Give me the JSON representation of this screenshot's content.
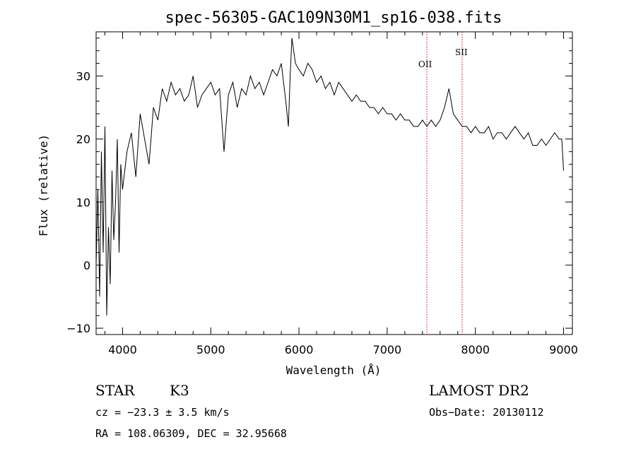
{
  "chart_data": {
    "type": "line",
    "title": "spec-56305-GAC109N30M1_sp16-038.fits",
    "xlabel": "Wavelength (Å)",
    "ylabel": "Flux (relative)",
    "xlim": [
      3700,
      9100
    ],
    "ylim": [
      -11,
      37
    ],
    "x_ticks": [
      4000,
      5000,
      6000,
      7000,
      8000,
      9000
    ],
    "x_tick_labels": [
      "4000",
      "5000",
      "6000",
      "7000",
      "8000",
      "9000"
    ],
    "y_ticks": [
      -10,
      0,
      10,
      20,
      30
    ],
    "y_tick_labels": [
      "−10",
      "0",
      "10",
      "20",
      "30"
    ],
    "grid": false,
    "series": [
      {
        "x": [
          3700,
          3720,
          3740,
          3760,
          3780,
          3800,
          3820,
          3840,
          3860,
          3880,
          3900,
          3920,
          3940,
          3960,
          3980,
          4000,
          4050,
          4100,
          4150,
          4200,
          4250,
          4300,
          4350,
          4400,
          4450,
          4500,
          4550,
          4600,
          4650,
          4700,
          4750,
          4800,
          4850,
          4900,
          4950,
          5000,
          5050,
          5100,
          5150,
          5200,
          5250,
          5300,
          5350,
          5400,
          5450,
          5500,
          5550,
          5600,
          5650,
          5700,
          5750,
          5800,
          5850,
          5880,
          5900,
          5920,
          5940,
          5960,
          6000,
          6050,
          6100,
          6150,
          6200,
          6250,
          6300,
          6350,
          6400,
          6450,
          6500,
          6550,
          6600,
          6650,
          6700,
          6750,
          6800,
          6850,
          6900,
          6950,
          7000,
          7050,
          7100,
          7150,
          7200,
          7250,
          7300,
          7350,
          7400,
          7450,
          7500,
          7550,
          7600,
          7650,
          7700,
          7750,
          7800,
          7850,
          7900,
          7950,
          8000,
          8050,
          8100,
          8150,
          8200,
          8250,
          8300,
          8350,
          8400,
          8450,
          8500,
          8550,
          8600,
          8650,
          8700,
          8750,
          8800,
          8850,
          8900,
          8950,
          8980,
          9000
        ],
        "y": [
          0,
          12,
          -5,
          18,
          2,
          22,
          -8,
          6,
          -3,
          15,
          4,
          10,
          20,
          2,
          16,
          12,
          18,
          21,
          14,
          24,
          20,
          16,
          25,
          23,
          28,
          26,
          29,
          27,
          28,
          26,
          27,
          30,
          25,
          27,
          28,
          29,
          27,
          28,
          18,
          27,
          29,
          25,
          28,
          27,
          30,
          28,
          29,
          27,
          29,
          31,
          30,
          32,
          26,
          22,
          30,
          36,
          34,
          32,
          31,
          30,
          32,
          31,
          29,
          30,
          28,
          29,
          27,
          29,
          28,
          27,
          26,
          27,
          26,
          26,
          25,
          25,
          24,
          25,
          24,
          24,
          23,
          24,
          23,
          23,
          22,
          22,
          23,
          22,
          23,
          22,
          23,
          25,
          28,
          24,
          23,
          22,
          22,
          21,
          22,
          21,
          21,
          22,
          20,
          21,
          21,
          20,
          21,
          22,
          21,
          20,
          21,
          19,
          19,
          20,
          19,
          20,
          21,
          20,
          20,
          15
        ]
      }
    ],
    "annotations": [
      {
        "label": "OII",
        "x": 7450
      },
      {
        "label": "SII",
        "x": 7850
      }
    ],
    "line_color": "#000000",
    "marker_line_color": "#cc0000"
  },
  "info": {
    "star_type": "STAR",
    "subclass": "K3",
    "source": "LAMOST DR2",
    "cz": "cz = −23.3 ± 3.5 km/s",
    "obs_date": "Obs−Date: 20130112",
    "radec": "RA = 108.06309, DEC =  32.95668"
  }
}
